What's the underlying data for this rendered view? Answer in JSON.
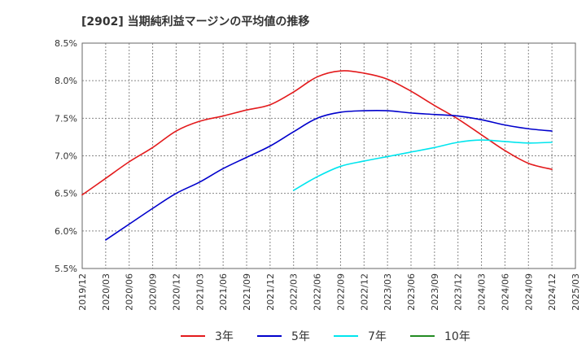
{
  "chart_data": {
    "type": "line",
    "title": "[2902]  当期純利益マージンの平均値の推移",
    "xlabel": "",
    "ylabel": "",
    "x_ticks": [
      "2019/12",
      "2020/03",
      "2020/06",
      "2020/09",
      "2020/12",
      "2021/03",
      "2021/06",
      "2021/09",
      "2021/12",
      "2022/03",
      "2022/06",
      "2022/09",
      "2022/12",
      "2023/03",
      "2023/06",
      "2023/09",
      "2023/12",
      "2024/03",
      "2024/06",
      "2024/09",
      "2024/12",
      "2025/03"
    ],
    "y_ticks": [
      "5.5%",
      "6.0%",
      "6.5%",
      "7.0%",
      "7.5%",
      "8.0%",
      "8.5%"
    ],
    "ylim": [
      5.5,
      8.5
    ],
    "grid": true,
    "legend_position": "bottom",
    "series": [
      {
        "name": "3年",
        "color": "#e31a1c",
        "x": [
          "2019/12",
          "2020/03",
          "2020/06",
          "2020/09",
          "2020/12",
          "2021/03",
          "2021/06",
          "2021/09",
          "2021/12",
          "2022/03",
          "2022/06",
          "2022/09",
          "2022/12",
          "2023/03",
          "2023/06",
          "2023/09",
          "2023/12",
          "2024/03",
          "2024/06",
          "2024/09",
          "2024/12"
        ],
        "values": [
          6.48,
          6.7,
          6.92,
          7.11,
          7.33,
          7.46,
          7.53,
          7.61,
          7.68,
          7.85,
          8.05,
          8.13,
          8.1,
          8.02,
          7.86,
          7.67,
          7.49,
          7.28,
          7.07,
          6.9,
          6.82
        ]
      },
      {
        "name": "5年",
        "color": "#0000cc",
        "x": [
          "2020/03",
          "2020/06",
          "2020/09",
          "2020/12",
          "2021/03",
          "2021/06",
          "2021/09",
          "2021/12",
          "2022/03",
          "2022/06",
          "2022/09",
          "2022/12",
          "2023/03",
          "2023/06",
          "2023/09",
          "2023/12",
          "2024/03",
          "2024/06",
          "2024/09",
          "2024/12"
        ],
        "values": [
          5.88,
          6.09,
          6.3,
          6.5,
          6.65,
          6.83,
          6.98,
          7.13,
          7.32,
          7.5,
          7.58,
          7.6,
          7.6,
          7.57,
          7.55,
          7.53,
          7.48,
          7.41,
          7.36,
          7.33
        ]
      },
      {
        "name": "7年",
        "color": "#00e5ee",
        "x": [
          "2022/03",
          "2022/06",
          "2022/09",
          "2022/12",
          "2023/03",
          "2023/06",
          "2023/09",
          "2023/12",
          "2024/03",
          "2024/06",
          "2024/09",
          "2024/12"
        ],
        "values": [
          6.54,
          6.72,
          6.86,
          6.93,
          6.99,
          7.05,
          7.11,
          7.18,
          7.21,
          7.19,
          7.17,
          7.18
        ]
      },
      {
        "name": "10年",
        "color": "#228b22",
        "x": [],
        "values": []
      }
    ]
  }
}
